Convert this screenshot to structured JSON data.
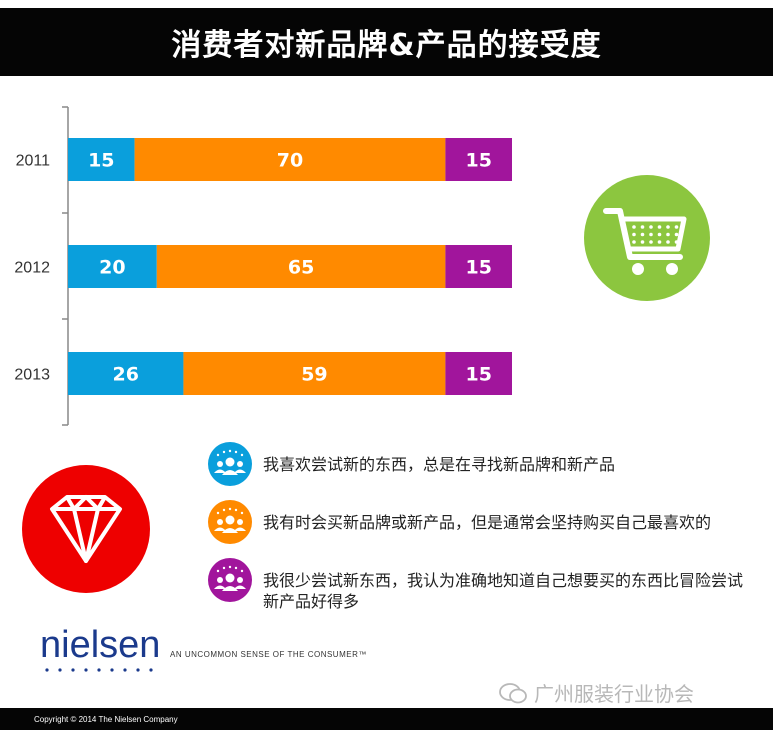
{
  "title": "消费者对新品牌&产品的接受度",
  "chart_data": {
    "type": "bar",
    "orientation": "horizontal",
    "stacked": true,
    "categories": [
      "2011",
      "2012",
      "2013"
    ],
    "series": [
      {
        "name": "我喜欢尝试新的东西，总是在寻找新品牌和新产品",
        "color": "#0a9fdc",
        "values": [
          15,
          20,
          26
        ]
      },
      {
        "name": "我有时会买新品牌或新产品，但是通常会坚持购买自己最喜欢的",
        "color": "#ff8a00",
        "values": [
          70,
          65,
          59
        ]
      },
      {
        "name": "我很少尝试新东西，我认为准确地知道自己想要买的东西比冒险尝试新产品好得多",
        "color": "#a1159c",
        "values": [
          15,
          15,
          15
        ]
      }
    ],
    "xlim": [
      0,
      100
    ],
    "grid": false,
    "legend_position": "bottom"
  },
  "legend": [
    {
      "text": "我喜欢尝试新的东西，总是在寻找新品牌和新产品",
      "color": "#0a9fdc"
    },
    {
      "text": "我有时会买新品牌或新产品，但是通常会坚持购买自己最喜欢的",
      "color": "#ff8a00"
    },
    {
      "text": "我很少尝试新东西，我认为准确地知道自己想要买的东西比冒险尝试新产品好得多",
      "color": "#a1159c"
    }
  ],
  "icons": {
    "cart": "shopping-cart-icon",
    "gem": "diamond-icon",
    "legend": "people-stars-icon"
  },
  "logo": {
    "name": "nielsen",
    "tagline": "AN UNCOMMON SENSE OF THE CONSUMER™"
  },
  "watermark": "广州服装行业协会",
  "footer": "Copyright © 2014 The Nielsen Company"
}
